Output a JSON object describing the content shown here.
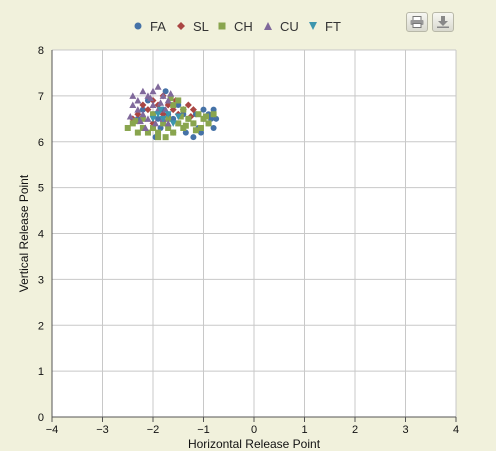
{
  "legend": {
    "items": [
      {
        "key": "FA",
        "label": "FA",
        "color": "#4572a7",
        "marker": "circle"
      },
      {
        "key": "SL",
        "label": "SL",
        "color": "#aa4643",
        "marker": "diamond"
      },
      {
        "key": "CH",
        "label": "CH",
        "color": "#89a54e",
        "marker": "square"
      },
      {
        "key": "CU",
        "label": "CU",
        "color": "#80699b",
        "marker": "triangle"
      },
      {
        "key": "FT",
        "label": "FT",
        "color": "#3d96ae",
        "marker": "triangle-down"
      }
    ]
  },
  "toolbar": {
    "print_icon": "printer-icon",
    "export_icon": "download-icon"
  },
  "chart_data": {
    "type": "scatter",
    "xlabel": "Horizontal Release Point",
    "ylabel": "Vertical Release Point",
    "xlim": [
      -4,
      4
    ],
    "ylim": [
      0,
      8
    ],
    "xticks": [
      "−4",
      "−3",
      "−2",
      "−1",
      "0",
      "1",
      "2",
      "3",
      "4"
    ],
    "yticks": [
      "0",
      "1",
      "2",
      "3",
      "4",
      "5",
      "6",
      "7",
      "8"
    ],
    "grid": true,
    "legend_position": "top",
    "series": [
      {
        "name": "FA",
        "color": "#4572a7",
        "marker": "circle",
        "points": [
          [
            -2.0,
            6.6
          ],
          [
            -1.9,
            6.5
          ],
          [
            -1.8,
            6.7
          ],
          [
            -1.7,
            6.6
          ],
          [
            -1.6,
            6.5
          ],
          [
            -1.5,
            6.4
          ],
          [
            -1.4,
            6.6
          ],
          [
            -1.3,
            6.5
          ],
          [
            -1.2,
            6.4
          ],
          [
            -1.1,
            6.3
          ],
          [
            -1.0,
            6.5
          ],
          [
            -0.9,
            6.6
          ],
          [
            -0.8,
            6.7
          ],
          [
            -0.75,
            6.5
          ],
          [
            -0.8,
            6.3
          ],
          [
            -0.9,
            6.4
          ],
          [
            -1.0,
            6.7
          ],
          [
            -1.15,
            6.6
          ],
          [
            -1.2,
            6.1
          ],
          [
            -1.6,
            6.2
          ],
          [
            -1.75,
            7.1
          ],
          [
            -2.1,
            6.9
          ],
          [
            -2.2,
            6.7
          ],
          [
            -1.85,
            6.3
          ],
          [
            -1.5,
            6.8
          ],
          [
            -1.35,
            6.2
          ],
          [
            -1.05,
            6.2
          ],
          [
            -0.85,
            6.5
          ],
          [
            -2.3,
            6.5
          ],
          [
            -1.95,
            6.1
          ]
        ]
      },
      {
        "name": "SL",
        "color": "#aa4643",
        "marker": "diamond",
        "points": [
          [
            -2.3,
            6.6
          ],
          [
            -2.2,
            6.8
          ],
          [
            -2.1,
            6.7
          ],
          [
            -2.0,
            6.9
          ],
          [
            -1.9,
            6.8
          ],
          [
            -1.8,
            6.6
          ],
          [
            -1.7,
            6.8
          ],
          [
            -1.6,
            6.7
          ],
          [
            -1.5,
            6.6
          ],
          [
            -1.4,
            6.7
          ],
          [
            -1.3,
            6.8
          ],
          [
            -1.2,
            6.7
          ],
          [
            -2.4,
            6.5
          ],
          [
            -2.0,
            6.4
          ],
          [
            -1.8,
            7.0
          ],
          [
            -1.55,
            6.9
          ],
          [
            -1.25,
            6.55
          ]
        ]
      },
      {
        "name": "CH",
        "color": "#89a54e",
        "marker": "square",
        "points": [
          [
            -2.5,
            6.3
          ],
          [
            -2.4,
            6.4
          ],
          [
            -2.3,
            6.2
          ],
          [
            -2.2,
            6.3
          ],
          [
            -2.1,
            6.2
          ],
          [
            -2.0,
            6.3
          ],
          [
            -1.9,
            6.2
          ],
          [
            -1.8,
            6.4
          ],
          [
            -1.7,
            6.3
          ],
          [
            -1.6,
            6.2
          ],
          [
            -1.5,
            6.4
          ],
          [
            -1.4,
            6.3
          ],
          [
            -1.3,
            6.5
          ],
          [
            -1.2,
            6.4
          ],
          [
            -1.1,
            6.6
          ],
          [
            -1.0,
            6.5
          ],
          [
            -0.9,
            6.4
          ],
          [
            -0.8,
            6.6
          ],
          [
            -1.6,
            6.8
          ],
          [
            -1.5,
            6.9
          ],
          [
            -1.4,
            6.7
          ],
          [
            -1.7,
            6.5
          ],
          [
            -2.0,
            6.6
          ],
          [
            -2.2,
            6.5
          ],
          [
            -1.9,
            6.1
          ],
          [
            -1.75,
            6.1
          ],
          [
            -1.35,
            6.35
          ],
          [
            -1.15,
            6.25
          ],
          [
            -0.95,
            6.55
          ],
          [
            -1.45,
            6.55
          ],
          [
            -1.65,
            6.95
          ],
          [
            -2.35,
            6.45
          ],
          [
            -1.05,
            6.3
          ]
        ]
      },
      {
        "name": "CU",
        "color": "#80699b",
        "marker": "triangle",
        "points": [
          [
            -2.4,
            7.0
          ],
          [
            -2.3,
            6.9
          ],
          [
            -2.2,
            7.1
          ],
          [
            -2.1,
            7.0
          ],
          [
            -2.0,
            7.1
          ],
          [
            -1.9,
            7.2
          ],
          [
            -1.8,
            7.0
          ],
          [
            -1.7,
            6.9
          ],
          [
            -2.3,
            6.7
          ],
          [
            -2.2,
            6.6
          ],
          [
            -2.1,
            6.5
          ],
          [
            -2.0,
            6.8
          ],
          [
            -1.9,
            6.7
          ],
          [
            -1.8,
            6.5
          ],
          [
            -1.7,
            6.4
          ],
          [
            -2.4,
            6.8
          ],
          [
            -2.15,
            6.3
          ],
          [
            -1.95,
            6.4
          ],
          [
            -1.85,
            6.85
          ],
          [
            -2.05,
            6.95
          ],
          [
            -2.25,
            6.45
          ],
          [
            -1.75,
            6.7
          ],
          [
            -2.45,
            6.55
          ],
          [
            -1.65,
            7.05
          ]
        ]
      },
      {
        "name": "FT",
        "color": "#3d96ae",
        "marker": "triangle-down",
        "points": [
          [
            -1.9,
            6.6
          ],
          [
            -1.8,
            6.5
          ],
          [
            -1.7,
            6.6
          ],
          [
            -1.6,
            6.4
          ],
          [
            -2.0,
            6.5
          ],
          [
            -1.85,
            6.7
          ],
          [
            -1.5,
            6.55
          ]
        ]
      }
    ]
  }
}
